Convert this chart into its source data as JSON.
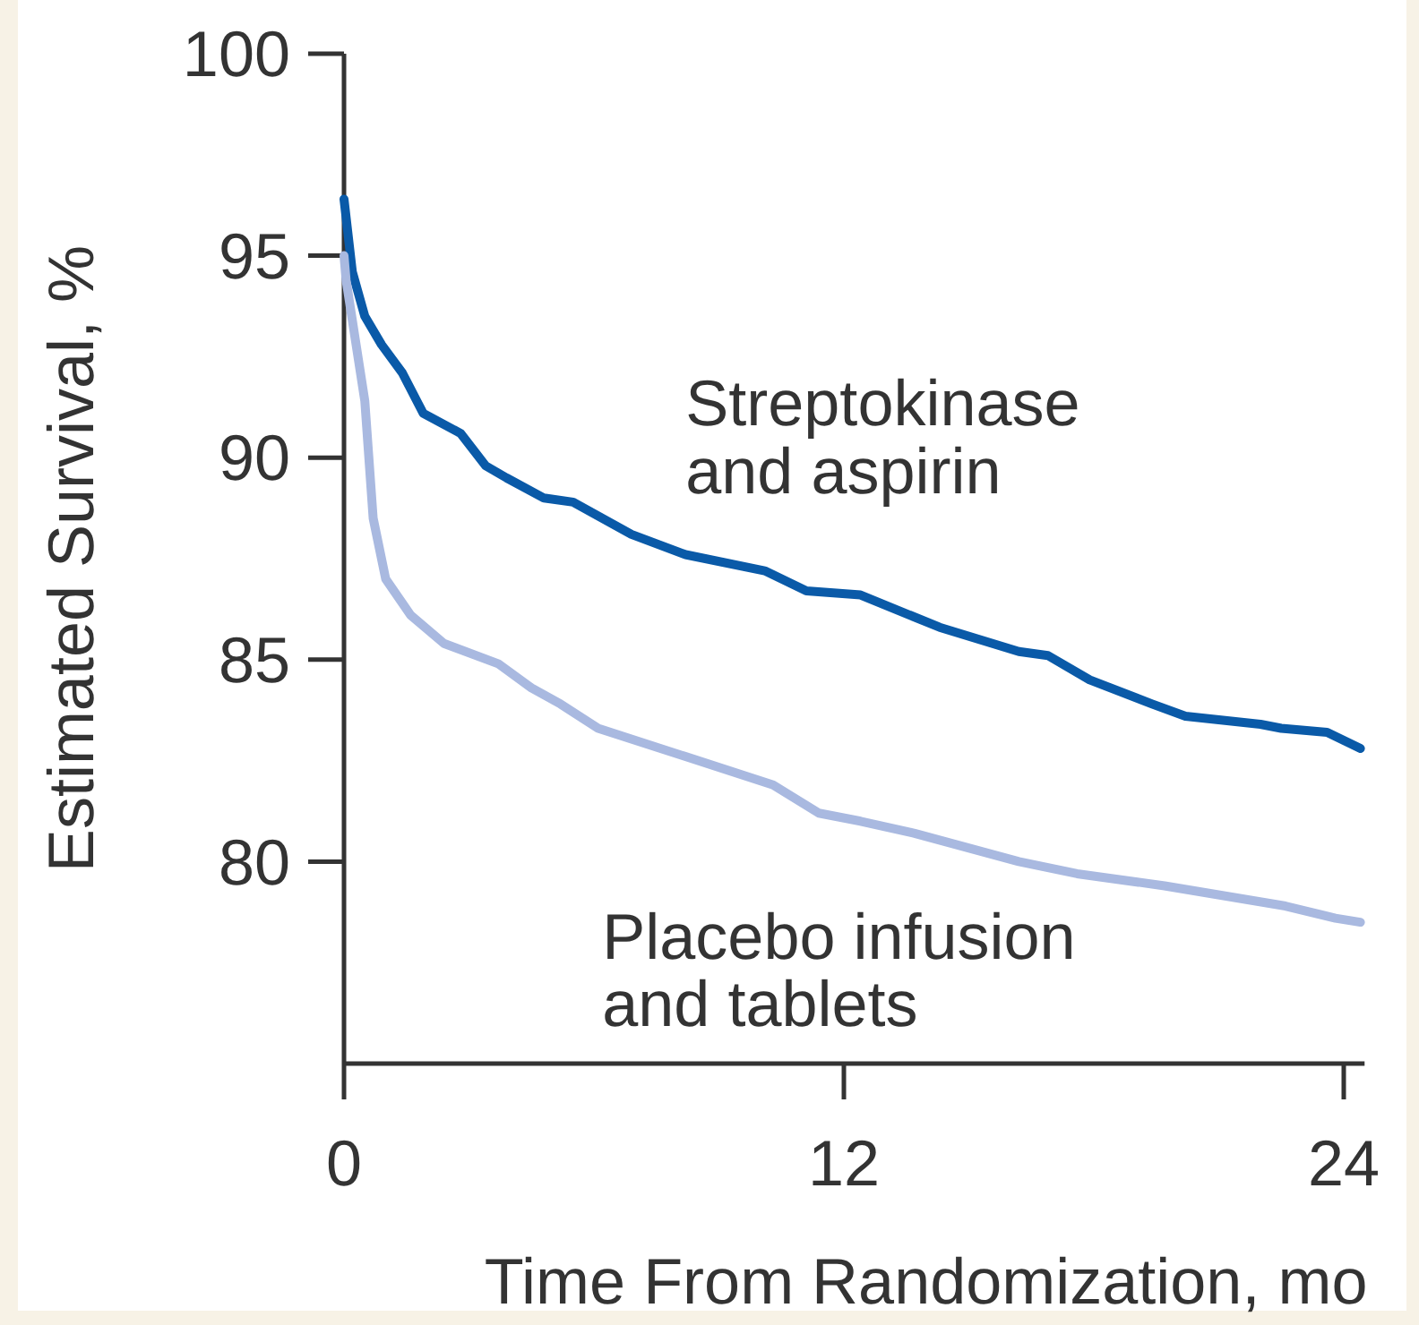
{
  "chart_data": {
    "type": "line",
    "xlabel": "Time From Randomization, mo",
    "ylabel": "Estimated Survival, %",
    "xlim": [
      0,
      24.5
    ],
    "xticks": [
      0,
      12,
      24
    ],
    "ylim": [
      75,
      100
    ],
    "yticks": [
      80,
      85,
      90,
      95,
      100
    ],
    "grid": false,
    "series": [
      {
        "name": "Streptokinase and aspirin",
        "color": "#0a5aa8",
        "x": [
          0,
          0.2,
          0.5,
          0.9,
          1.4,
          1.9,
          2.8,
          3.4,
          3.9,
          4.8,
          5.5,
          6.9,
          8.2,
          10.1,
          11.1,
          12.4,
          14.3,
          16.2,
          16.9,
          17.9,
          19.4,
          20.2,
          22.0,
          22.5,
          23.6,
          24.4
        ],
        "values": [
          96.4,
          94.6,
          93.5,
          92.8,
          92.1,
          91.1,
          90.6,
          89.8,
          89.5,
          89.0,
          88.9,
          88.1,
          87.6,
          87.2,
          86.7,
          86.6,
          85.8,
          85.2,
          85.1,
          84.5,
          83.9,
          83.6,
          83.4,
          83.3,
          83.2,
          82.8
        ]
      },
      {
        "name": "Placebo infusion and tablets",
        "color": "#a9b9e0",
        "x": [
          0,
          0.05,
          0.5,
          0.7,
          1.0,
          1.6,
          2.4,
          3.7,
          4.5,
          5.2,
          6.1,
          8.2,
          10.3,
          11.4,
          12.4,
          13.7,
          16.2,
          17.6,
          19.7,
          22.6,
          23.8,
          24.4
        ],
        "values": [
          95.0,
          94.4,
          91.4,
          88.5,
          87.0,
          86.1,
          85.4,
          84.9,
          84.3,
          83.9,
          83.3,
          82.6,
          81.9,
          81.2,
          81.0,
          80.7,
          80.0,
          79.7,
          79.4,
          78.9,
          78.6,
          78.5
        ]
      }
    ]
  }
}
